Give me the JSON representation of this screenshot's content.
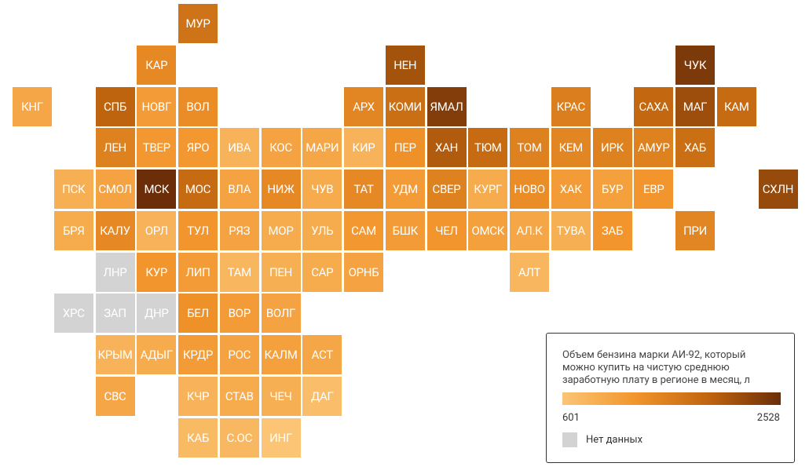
{
  "chart_data": {
    "type": "tilemap",
    "regions": [
      "МУР",
      "КАР",
      "НЕН",
      "ЧУК",
      "КНГ",
      "СПБ",
      "НОВГ",
      "ВОЛ",
      "АРХ",
      "КОМИ",
      "ЯМАЛ",
      "КРАС",
      "САХА",
      "МАГ",
      "КАМ",
      "ЛЕН",
      "ТВЕР",
      "ЯРО",
      "ИВА",
      "КОС",
      "МАРИ",
      "КИР",
      "ПЕР",
      "ХАН",
      "ТЮМ",
      "ТОМ",
      "КЕМ",
      "ИРК",
      "АМУР",
      "ХАБ",
      "ПСК",
      "СМОЛ",
      "МСК",
      "МОС",
      "ВЛА",
      "НИЖ",
      "ЧУВ",
      "ТАТ",
      "УДМ",
      "СВЕР",
      "КУРГ",
      "НОВО",
      "ХАК",
      "БУР",
      "ЕВР",
      "СХЛН",
      "БРЯ",
      "КАЛУ",
      "ОРЛ",
      "ТУЛ",
      "РЯЗ",
      "МОР",
      "УЛЬ",
      "САМ",
      "БШК",
      "ЧЕЛ",
      "ОМСК",
      "АЛ.К",
      "ТУВА",
      "ЗАБ",
      "ПРИ",
      "ЛНР",
      "КУР",
      "ЛИП",
      "ТАМ",
      "ПЕН",
      "САР",
      "ОРНБ",
      "АЛТ",
      "ХРС",
      "ЗАП",
      "ДНР",
      "БЕЛ",
      "ВОР",
      "ВОЛГ",
      "КРЫМ",
      "АДЫГ",
      "КРДР",
      "РОС",
      "КАЛМ",
      "АСТ",
      "СВС",
      "КЧР",
      "СТАВ",
      "ЧЕЧ",
      "ДАГ",
      "КАБ",
      "С.ОС",
      "ИНГ"
    ],
    "values": [
      1700,
      1400,
      2100,
      2400,
      1000,
      1900,
      1150,
      1350,
      1450,
      1750,
      2350,
      1550,
      1850,
      2150,
      1800,
      1500,
      1200,
      1200,
      850,
      1050,
      1000,
      850,
      1300,
      2000,
      1800,
      1500,
      1450,
      1500,
      1500,
      1750,
      900,
      1050,
      2528,
      1800,
      1050,
      1400,
      950,
      1400,
      1150,
      1500,
      950,
      1350,
      1150,
      1100,
      1250,
      2200,
      950,
      1400,
      850,
      1250,
      1050,
      950,
      950,
      1200,
      1150,
      1250,
      1100,
      1000,
      900,
      1250,
      1450,
      null,
      1250,
      1150,
      800,
      900,
      950,
      1050,
      800,
      null,
      null,
      null,
      1300,
      1150,
      1050,
      850,
      950,
      1150,
      1050,
      1100,
      1000,
      1000,
      850,
      950,
      900,
      700,
      750,
      780,
      601
    ],
    "legend_title": "Объем бензина марки АИ-92, который можно купить на чистую среднюю заработную плату в регионе в месяц, л",
    "colorscale": {
      "min": 601,
      "max": 2528,
      "colors": [
        "#fbc575",
        "#f2952c",
        "#c0650f",
        "#6b2e08"
      ]
    },
    "no_data_label": "Нет данных",
    "no_data_color": "#d3d3d3"
  }
}
